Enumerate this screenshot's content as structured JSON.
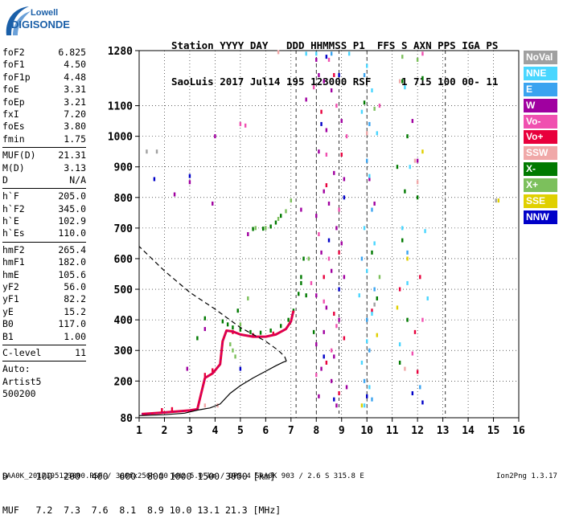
{
  "logo": {
    "line1": "Lowell",
    "line2": "DIGISONDE"
  },
  "header": {
    "labels": "Station YYYY DAY   DDD HHMMSS P1  FFS S AXN PPS IGA PS",
    "values": "SaoLuis 2017 Jul14 195 123000 RSF     1 715 100 00- 11"
  },
  "params": {
    "group1": [
      {
        "k": "foF2",
        "v": "6.825"
      },
      {
        "k": "foF1",
        "v": "4.50"
      },
      {
        "k": "foF1p",
        "v": "4.48"
      },
      {
        "k": "foE",
        "v": "3.31"
      },
      {
        "k": "foEp",
        "v": "3.21"
      },
      {
        "k": "fxI",
        "v": "7.20"
      },
      {
        "k": "foEs",
        "v": "3.80"
      },
      {
        "k": "fmin",
        "v": "1.75"
      }
    ],
    "group2": [
      {
        "k": "MUF(D)",
        "v": "21.31"
      },
      {
        "k": "M(D)",
        "v": "3.13"
      },
      {
        "k": "D",
        "v": "N/A"
      }
    ],
    "group3": [
      {
        "k": "h`F",
        "v": "205.0"
      },
      {
        "k": "h`F2",
        "v": "345.0"
      },
      {
        "k": "h`E",
        "v": "102.9"
      },
      {
        "k": "h`Es",
        "v": "110.0"
      }
    ],
    "group4": [
      {
        "k": "hmF2",
        "v": "265.4"
      },
      {
        "k": "hmF1",
        "v": "182.0"
      },
      {
        "k": "hmE",
        "v": "105.6"
      },
      {
        "k": "yF2",
        "v": "56.0"
      },
      {
        "k": "yF1",
        "v": "82.2"
      },
      {
        "k": "yE",
        "v": "15.2"
      },
      {
        "k": "B0",
        "v": "117.0"
      },
      {
        "k": "B1",
        "v": "1.00"
      }
    ],
    "clevel": {
      "k": "C-level",
      "v": "11"
    },
    "auto": [
      "Auto:",
      "Artist5",
      "500200"
    ]
  },
  "legend": [
    {
      "label": "NoVal",
      "color": "#a0a0a0"
    },
    {
      "label": "NNE",
      "color": "#49d6ff"
    },
    {
      "label": "E",
      "color": "#3aa3f0"
    },
    {
      "label": "W",
      "color": "#a000a0"
    },
    {
      "label": "Vo-",
      "color": "#f050b0"
    },
    {
      "label": "Vo+",
      "color": "#e8003c"
    },
    {
      "label": "SSW",
      "color": "#f0a8a8"
    },
    {
      "label": "X-",
      "color": "#007a00"
    },
    {
      "label": "X+",
      "color": "#7cc05c"
    },
    {
      "label": "SSE",
      "color": "#e0d000"
    },
    {
      "label": "NNW",
      "color": "#0000c8"
    }
  ],
  "muf_table": {
    "d_row": "D     100  200  400  600  800 1000 1500 3000 [km]",
    "muf_row": "MUF   7.2  7.3  7.6  8.1  8.9 10.0 13.1 21.3 [MHz]"
  },
  "footer": {
    "left": "SAA0K_2017195123000.RSF / 300fx256h 50 kHz 5.0 km / DPS-4 SAA0K 903 / 2.6 S 315.8 E",
    "right": "Ion2Png 1.3.17"
  },
  "chart_data": {
    "type": "scatter",
    "title": "",
    "xlabel": "",
    "ylabel": "",
    "xlim": [
      1,
      16
    ],
    "ylim": [
      80,
      1280
    ],
    "x_ticks": [
      1,
      2,
      3,
      4,
      5,
      6,
      7,
      8,
      9,
      10,
      11,
      12,
      13,
      14,
      15,
      16
    ],
    "y_ticks": [
      80,
      200,
      300,
      400,
      500,
      600,
      700,
      800,
      900,
      1000,
      1100,
      1280
    ],
    "dashed_vertical_lines": [
      7.2,
      8.0,
      8.9,
      10.0,
      13.1
    ],
    "grid": true,
    "profile_curve": [
      [
        1.0,
        87
      ],
      [
        2.0,
        90
      ],
      [
        2.8,
        95
      ],
      [
        3.3,
        105
      ],
      [
        3.8,
        112
      ],
      [
        4.2,
        125
      ],
      [
        4.6,
        160
      ],
      [
        5.0,
        185
      ],
      [
        5.5,
        210
      ],
      [
        6.0,
        232
      ],
      [
        6.4,
        250
      ],
      [
        6.7,
        262
      ],
      [
        6.82,
        265
      ],
      [
        6.75,
        280
      ],
      [
        6.5,
        300
      ],
      [
        6.0,
        330
      ],
      [
        5.0,
        375
      ],
      [
        4.0,
        435
      ],
      [
        3.0,
        490
      ],
      [
        2.0,
        560
      ],
      [
        1.0,
        640
      ]
    ],
    "trace_curve": [
      [
        1.1,
        92
      ],
      [
        1.8,
        96
      ],
      [
        2.4,
        100
      ],
      [
        3.0,
        104
      ],
      [
        3.3,
        108
      ],
      [
        3.6,
        210
      ],
      [
        3.9,
        225
      ],
      [
        4.2,
        255
      ],
      [
        4.3,
        330
      ],
      [
        4.45,
        365
      ],
      [
        4.7,
        362
      ],
      [
        5.0,
        352
      ],
      [
        5.5,
        345
      ],
      [
        6.0,
        345
      ],
      [
        6.4,
        352
      ],
      [
        6.8,
        370
      ],
      [
        7.0,
        395
      ],
      [
        7.1,
        430
      ]
    ],
    "series": [
      {
        "name": "W",
        "color": "#a000a0",
        "points": [
          [
            8.0,
            1250
          ],
          [
            8.1,
            1200
          ],
          [
            8.3,
            1180
          ],
          [
            8.6,
            1150
          ],
          [
            9.0,
            1050
          ],
          [
            8.4,
            1020
          ],
          [
            8.1,
            950
          ],
          [
            8.7,
            880
          ],
          [
            9.1,
            860
          ],
          [
            8.3,
            820
          ],
          [
            8.5,
            780
          ],
          [
            8.0,
            740
          ],
          [
            8.8,
            700
          ],
          [
            9.0,
            650
          ],
          [
            8.2,
            620
          ],
          [
            8.6,
            560
          ],
          [
            9.1,
            540
          ],
          [
            8.0,
            480
          ],
          [
            8.4,
            440
          ],
          [
            8.9,
            400
          ],
          [
            8.3,
            360
          ],
          [
            8.0,
            320
          ],
          [
            8.7,
            280
          ],
          [
            8.2,
            240
          ],
          [
            8.6,
            200
          ],
          [
            9.2,
            180
          ],
          [
            8.1,
            150
          ],
          [
            8.8,
            120
          ],
          [
            11.8,
            1050
          ],
          [
            12.0,
            920
          ],
          [
            10.1,
            860
          ],
          [
            10.3,
            780
          ],
          [
            7.6,
            1120
          ],
          [
            7.4,
            760
          ],
          [
            2.4,
            810
          ],
          [
            3.0,
            850
          ],
          [
            2.9,
            240
          ],
          [
            4.0,
            1000
          ],
          [
            3.9,
            780
          ],
          [
            5.3,
            680
          ],
          [
            3.6,
            370
          ]
        ]
      },
      {
        "name": "Vo-",
        "color": "#f050b0",
        "points": [
          [
            8.5,
            1250
          ],
          [
            7.9,
            1160
          ],
          [
            8.8,
            1100
          ],
          [
            9.2,
            1000
          ],
          [
            8.4,
            940
          ],
          [
            8.9,
            760
          ],
          [
            8.1,
            680
          ],
          [
            8.5,
            600
          ],
          [
            7.8,
            520
          ],
          [
            8.3,
            460
          ],
          [
            8.8,
            380
          ],
          [
            8.6,
            300
          ],
          [
            8.0,
            220
          ],
          [
            5.0,
            1040
          ],
          [
            5.2,
            1035
          ],
          [
            12.2,
            1270
          ],
          [
            10.5,
            1100
          ],
          [
            12.2,
            400
          ],
          [
            11.8,
            290
          ]
        ]
      },
      {
        "name": "Vo+",
        "color": "#e8003c",
        "points": [
          [
            8.7,
            1200
          ],
          [
            8.2,
            1080
          ],
          [
            9.0,
            940
          ],
          [
            8.4,
            840
          ],
          [
            8.9,
            620
          ],
          [
            8.3,
            540
          ],
          [
            8.7,
            420
          ],
          [
            9.1,
            340
          ],
          [
            8.4,
            260
          ],
          [
            8.9,
            160
          ],
          [
            12.1,
            540
          ],
          [
            11.9,
            360
          ],
          [
            12.0,
            230
          ],
          [
            10.2,
            430
          ],
          [
            11.3,
            500
          ],
          [
            4.7,
            360
          ],
          [
            5.5,
            350
          ],
          [
            6.3,
            355
          ],
          [
            3.6,
            220
          ],
          [
            3.9,
            235
          ],
          [
            1.9,
            105
          ],
          [
            2.3,
            108
          ]
        ]
      },
      {
        "name": "NNE",
        "color": "#49d6ff",
        "points": [
          [
            10.0,
            1230
          ],
          [
            10.2,
            1150
          ],
          [
            9.8,
            1080
          ],
          [
            10.4,
            1010
          ],
          [
            10.1,
            870
          ],
          [
            9.9,
            700
          ],
          [
            10.3,
            650
          ],
          [
            10.0,
            560
          ],
          [
            9.7,
            480
          ],
          [
            10.2,
            420
          ],
          [
            10.0,
            330
          ],
          [
            9.8,
            260
          ],
          [
            10.1,
            180
          ],
          [
            9.9,
            120
          ],
          [
            11.5,
            1160
          ],
          [
            11.7,
            900
          ],
          [
            11.4,
            700
          ],
          [
            11.6,
            520
          ],
          [
            11.3,
            320
          ],
          [
            12.4,
            470
          ],
          [
            12.3,
            690
          ],
          [
            7.6,
            1270
          ],
          [
            8.0,
            1270
          ],
          [
            9.3,
            1270
          ]
        ]
      },
      {
        "name": "E",
        "color": "#3aa3f0",
        "points": [
          [
            9.9,
            1200
          ],
          [
            10.1,
            1040
          ],
          [
            10.0,
            920
          ],
          [
            10.2,
            760
          ],
          [
            9.8,
            600
          ],
          [
            10.3,
            500
          ],
          [
            10.0,
            400
          ],
          [
            10.1,
            300
          ],
          [
            9.9,
            200
          ],
          [
            10.2,
            140
          ],
          [
            11.6,
            620
          ],
          [
            12.1,
            180
          ],
          [
            8.6,
            1270
          ]
        ]
      },
      {
        "name": "X-",
        "color": "#007a00",
        "points": [
          [
            7.4,
            520
          ],
          [
            7.4,
            540
          ],
          [
            7.3,
            485
          ],
          [
            7.1,
            430
          ],
          [
            6.9,
            400
          ],
          [
            6.6,
            380
          ],
          [
            6.2,
            365
          ],
          [
            5.8,
            358
          ],
          [
            5.4,
            360
          ],
          [
            5.0,
            368
          ],
          [
            4.7,
            375
          ],
          [
            4.5,
            385
          ],
          [
            4.3,
            395
          ],
          [
            5.5,
            697
          ],
          [
            5.9,
            698
          ],
          [
            6.2,
            705
          ],
          [
            6.4,
            718
          ],
          [
            6.6,
            740
          ],
          [
            7.6,
            480
          ],
          [
            7.5,
            600
          ],
          [
            7.9,
            360
          ],
          [
            11.4,
            1180
          ],
          [
            11.6,
            1000
          ],
          [
            11.5,
            820
          ],
          [
            11.4,
            660
          ],
          [
            11.6,
            400
          ],
          [
            11.3,
            260
          ],
          [
            10.2,
            620
          ],
          [
            10.4,
            470
          ],
          [
            12.2,
            1190
          ],
          [
            12.0,
            800
          ],
          [
            11.2,
            900
          ],
          [
            9.9,
            1110
          ],
          [
            3.3,
            340
          ],
          [
            3.6,
            405
          ],
          [
            4.9,
            430
          ]
        ]
      },
      {
        "name": "X+",
        "color": "#7cc05c",
        "points": [
          [
            4.6,
            320
          ],
          [
            4.7,
            300
          ],
          [
            4.8,
            280
          ],
          [
            5.0,
            385
          ],
          [
            5.6,
            700
          ],
          [
            6.0,
            700
          ],
          [
            6.5,
            730
          ],
          [
            6.8,
            755
          ],
          [
            7.0,
            790
          ],
          [
            10.3,
            1090
          ],
          [
            10.5,
            540
          ],
          [
            11.4,
            1260
          ],
          [
            12.0,
            1250
          ],
          [
            7.7,
            600
          ],
          [
            5.3,
            470
          ]
        ]
      },
      {
        "name": "SSW",
        "color": "#f0a8a8",
        "points": [
          [
            6.5,
            1275
          ],
          [
            11.9,
            920
          ],
          [
            12.0,
            850
          ],
          [
            10.0,
            1010
          ],
          [
            3.6,
            120
          ],
          [
            4.1,
            120
          ],
          [
            11.3,
            1180
          ],
          [
            11.5,
            240
          ]
        ]
      },
      {
        "name": "SSE",
        "color": "#e0d000",
        "points": [
          [
            11.2,
            440
          ],
          [
            12.2,
            950
          ],
          [
            10.4,
            350
          ],
          [
            15.2,
            790
          ],
          [
            11.6,
            600
          ],
          [
            9.8,
            120
          ]
        ]
      },
      {
        "name": "NNW",
        "color": "#0000c8",
        "points": [
          [
            8.4,
            1260
          ],
          [
            8.9,
            1200
          ],
          [
            8.2,
            1040
          ],
          [
            9.1,
            800
          ],
          [
            8.5,
            660
          ],
          [
            8.9,
            500
          ],
          [
            8.3,
            280
          ],
          [
            8.7,
            140
          ],
          [
            12.2,
            130
          ],
          [
            10.0,
            150
          ],
          [
            1.6,
            860
          ],
          [
            3.0,
            870
          ],
          [
            5.0,
            240
          ],
          [
            11.8,
            160
          ]
        ]
      },
      {
        "name": "NoVal",
        "color": "#a0a0a0",
        "points": [
          [
            1.3,
            950
          ],
          [
            1.7,
            950
          ],
          [
            10.3,
            450
          ],
          [
            15.1,
            790
          ]
        ]
      }
    ]
  }
}
